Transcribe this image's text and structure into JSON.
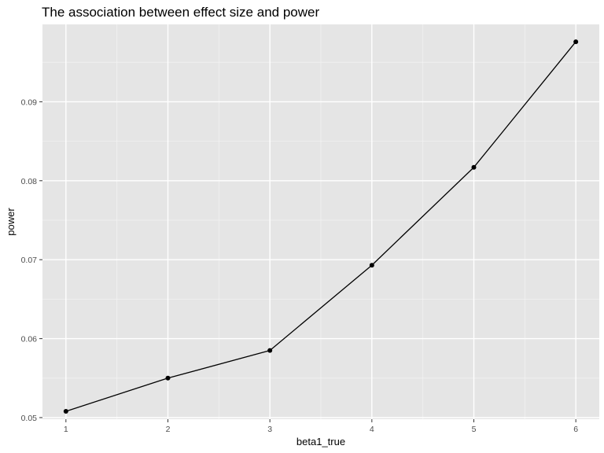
{
  "chart_data": {
    "type": "line",
    "title": "The association between effect size and power",
    "xlabel": "beta1_true",
    "ylabel": "power",
    "x": [
      1,
      2,
      3,
      4,
      5,
      6
    ],
    "y": [
      0.0508,
      0.055,
      0.0585,
      0.0693,
      0.0817,
      0.0976
    ],
    "xlim": [
      0.77,
      6.23
    ],
    "ylim": [
      0.0498,
      0.0998
    ],
    "xticks": [
      1,
      2,
      3,
      4,
      5,
      6
    ],
    "xtick_labels": [
      "1",
      "2",
      "3",
      "4",
      "5",
      "6"
    ],
    "yticks": [
      0.05,
      0.06,
      0.07,
      0.08,
      0.09
    ],
    "ytick_labels": [
      "0.05",
      "0.06",
      "0.07",
      "0.08",
      "0.09"
    ],
    "grid": true,
    "legend": "none",
    "colors": {
      "panel": "#e5e5e5",
      "grid_major": "#ffffff",
      "grid_minor": "#f2f2f2",
      "line": "#000000",
      "point": "#000000",
      "tick_label": "#4d4d4d"
    }
  }
}
